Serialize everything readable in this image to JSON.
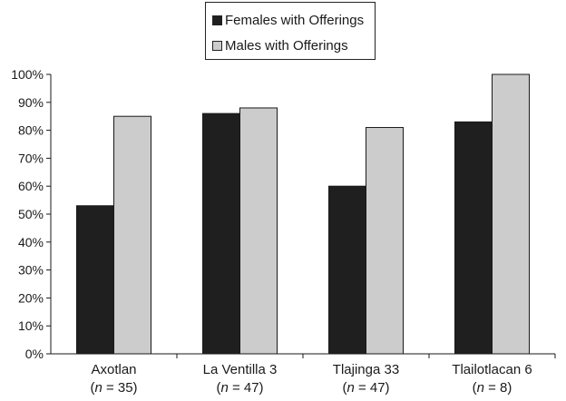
{
  "chart_data": {
    "type": "bar",
    "categories": [
      "Axotlan",
      "La Ventilla 3",
      "Tlajinga 33",
      "Tlailotlacan 6"
    ],
    "category_sizes": [
      "(n = 35)",
      "(n = 47)",
      "(n = 47)",
      "(n = 8)"
    ],
    "series": [
      {
        "name": "Females with Offerings",
        "values": [
          53,
          86,
          60,
          83
        ],
        "color": "#1f1f1f"
      },
      {
        "name": "Males with Offerings",
        "values": [
          85,
          88,
          81,
          100
        ],
        "color": "#cccccc"
      }
    ],
    "ylim": [
      0,
      100
    ],
    "yticks": [
      "0%",
      "10%",
      "20%",
      "30%",
      "40%",
      "50%",
      "60%",
      "70%",
      "80%",
      "90%",
      "100%"
    ],
    "title": "",
    "xlabel": "",
    "ylabel": "",
    "grid": false,
    "legend_position": "top-center"
  }
}
